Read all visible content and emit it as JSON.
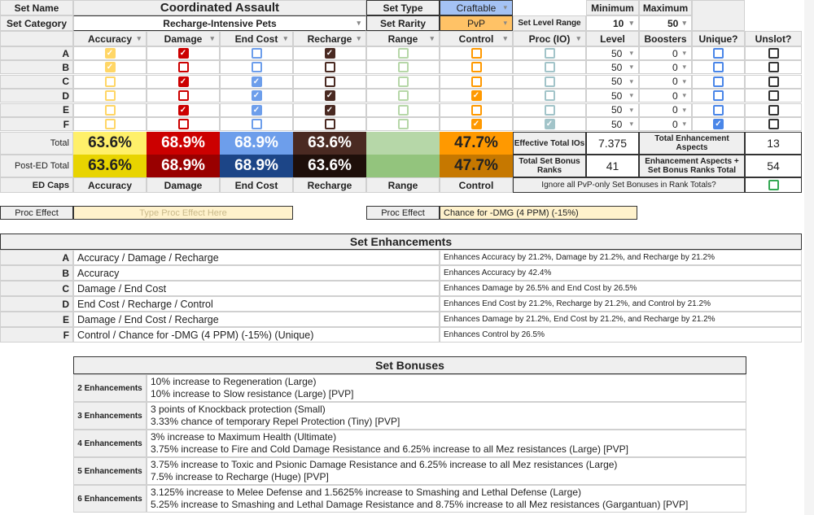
{
  "header": {
    "set_name_label": "Set Name",
    "set_name": "Coordinated Assault",
    "set_category_label": "Set Category",
    "set_category": "Recharge-Intensive Pets",
    "set_type_label": "Set Type",
    "set_type": "Craftable",
    "set_rarity_label": "Set Rarity",
    "set_rarity": "PvP",
    "level_range_label": "Set Level Range",
    "min_label": "Minimum",
    "max_label": "Maximum",
    "min": "10",
    "max": "50"
  },
  "columns": [
    "Accuracy",
    "Damage",
    "End Cost",
    "Recharge",
    "Range",
    "Control",
    "Proc (IO)",
    "Level",
    "Boosters",
    "Unique?",
    "Unslot?"
  ],
  "check_colors": [
    "#ffd666",
    "#cc0000",
    "#6d9eeb",
    "#4a2a22",
    "#b6d7a8",
    "#ff9900",
    "#a2c4c9",
    "#4a86e8",
    "#333333"
  ],
  "rows": [
    {
      "label": "A",
      "checks": [
        1,
        1,
        0,
        1,
        0,
        0,
        0,
        0,
        0
      ],
      "level": "50",
      "boosters": "0"
    },
    {
      "label": "B",
      "checks": [
        1,
        0,
        0,
        0,
        0,
        0,
        0,
        0,
        0
      ],
      "level": "50",
      "boosters": "0"
    },
    {
      "label": "C",
      "checks": [
        0,
        1,
        1,
        0,
        0,
        0,
        0,
        0,
        0
      ],
      "level": "50",
      "boosters": "0"
    },
    {
      "label": "D",
      "checks": [
        0,
        0,
        1,
        1,
        0,
        1,
        0,
        0,
        0
      ],
      "level": "50",
      "boosters": "0"
    },
    {
      "label": "E",
      "checks": [
        0,
        1,
        1,
        1,
        0,
        0,
        0,
        0,
        0
      ],
      "level": "50",
      "boosters": "0"
    },
    {
      "label": "F",
      "checks": [
        0,
        0,
        0,
        0,
        0,
        1,
        1,
        1,
        0
      ],
      "level": "50",
      "boosters": "0"
    }
  ],
  "totals": {
    "total_label": "Total",
    "post_ed_label": "Post-ED Total",
    "ed_caps_label": "ED Caps",
    "total": [
      "63.6%",
      "68.9%",
      "68.9%",
      "63.6%",
      "",
      "47.7%"
    ],
    "post_ed": [
      "63.6%",
      "68.9%",
      "68.9%",
      "63.6%",
      "",
      "47.7%"
    ],
    "total_colors": [
      "#fff06a",
      "#cc0000",
      "#6d9eeb",
      "#4a2a22",
      "#b6d7a8",
      "#ff9900"
    ],
    "post_colors": [
      "#e8d400",
      "#990000",
      "#1c4587",
      "#1e0f0a",
      "#93c47d",
      "#c67800"
    ],
    "text_colors": [
      "#222",
      "#fff",
      "#fff",
      "#fff",
      "#222",
      "#222"
    ],
    "ed_caps": [
      "Accuracy",
      "Damage",
      "End Cost",
      "Recharge",
      "Range",
      "Control"
    ]
  },
  "stats": {
    "eff_label": "Effective Total IOs",
    "eff": "7.375",
    "tea_label": "Total Enhancement Aspects",
    "tea": "13",
    "tsb_label": "Total Set Bonus Ranks",
    "tsb": "41",
    "sum_label": "Enhancement Aspects + Set Bonus Ranks Total",
    "sum": "54",
    "ignore_label": "Ignore all PvP-only Set Bonuses in Rank Totals?"
  },
  "proc": {
    "label": "Proc Effect",
    "placeholder": "Type Proc Effect Here",
    "label2": "Proc Effect",
    "value": "Chance for -DMG (4 PPM) (-15%)"
  },
  "set_enhancements": {
    "title": "Set Enhancements",
    "rows": [
      {
        "label": "A",
        "name": "Accuracy / Damage / Recharge",
        "effect": "Enhances Accuracy by 21.2%, Damage by 21.2%, and Recharge by 21.2%"
      },
      {
        "label": "B",
        "name": "Accuracy",
        "effect": "Enhances Accuracy by 42.4%"
      },
      {
        "label": "C",
        "name": "Damage / End Cost",
        "effect": "Enhances Damage by 26.5% and End Cost by 26.5%"
      },
      {
        "label": "D",
        "name": "End Cost / Recharge / Control",
        "effect": "Enhances End Cost by 21.2%, Recharge by 21.2%, and Control by 21.2%"
      },
      {
        "label": "E",
        "name": "Damage / End Cost / Recharge",
        "effect": "Enhances Damage by 21.2%, End Cost by 21.2%, and Recharge by 21.2%"
      },
      {
        "label": "F",
        "name": "Control / Chance for -DMG (4 PPM) (-15%) (Unique)",
        "effect": "Enhances Control by 26.5%"
      }
    ]
  },
  "set_bonuses": {
    "title": "Set Bonuses",
    "rows": [
      {
        "label": "2 Enhancements",
        "lines": [
          "10% increase to Regeneration (Large)",
          "10% increase to Slow resistance (Large) [PVP]"
        ]
      },
      {
        "label": "3 Enhancements",
        "lines": [
          "3 points of Knockback protection (Small)",
          "3.33% chance of temporary Repel Protection (Tiny) [PVP]"
        ]
      },
      {
        "label": "4 Enhancements",
        "lines": [
          "3% increase to Maximum Health (Ultimate)",
          "3.75% increase to Fire and Cold Damage Resistance and 6.25% increase to all Mez resistances (Large) [PVP]"
        ]
      },
      {
        "label": "5 Enhancements",
        "lines": [
          "3.75% increase to Toxic and Psionic Damage Resistance and 6.25% increase to all Mez resistances (Large)",
          "7.5% increase to Recharge (Huge) [PVP]"
        ]
      },
      {
        "label": "6 Enhancements",
        "lines": [
          "3.125% increase to Melee Defense and 1.5625% increase to Smashing and Lethal Defense (Large)",
          "5.25% increase to Smashing and Lethal Damage Resistance and 8.75% increase to all Mez resistances (Gargantuan) [PVP]"
        ]
      }
    ]
  }
}
